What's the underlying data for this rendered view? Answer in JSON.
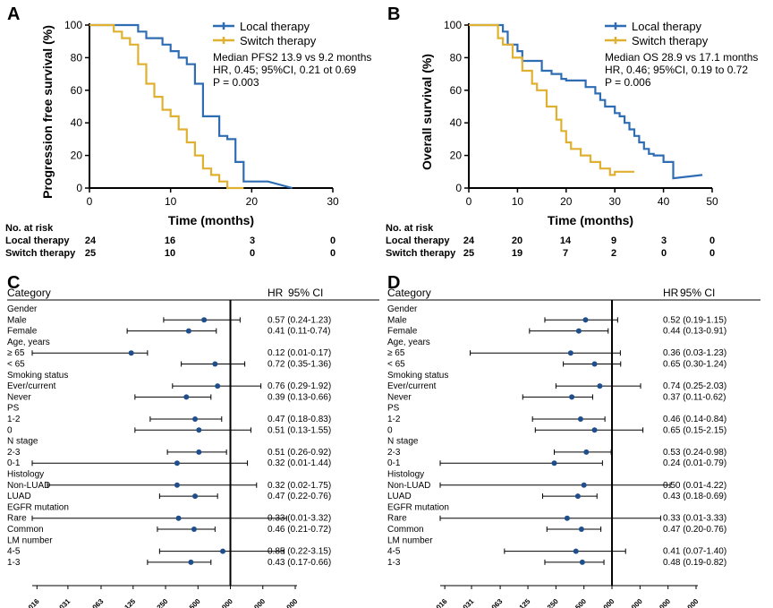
{
  "chart_data": [
    {
      "panel": "A",
      "type": "line",
      "ylabel": "Progression free survival (%)",
      "xlabel": "Time (months)",
      "xlim": [
        0,
        30
      ],
      "ylim": [
        0,
        100
      ],
      "xticks": [
        0,
        10,
        20,
        30
      ],
      "yticks": [
        0,
        20,
        40,
        60,
        80,
        100
      ],
      "series": [
        {
          "name": "Local therapy",
          "color": "#2e6db4",
          "x": [
            0,
            3,
            5,
            6,
            6,
            7,
            7,
            8,
            9,
            9,
            10,
            10,
            11,
            11,
            12,
            12,
            13,
            13,
            14,
            14,
            14,
            16,
            16,
            17,
            17,
            18,
            18,
            19,
            19,
            21,
            21,
            22,
            22,
            25
          ],
          "y": [
            100,
            100,
            100,
            100,
            96,
            96,
            92,
            92,
            92,
            88,
            88,
            84,
            84,
            80,
            80,
            76,
            76,
            64,
            64,
            52,
            44,
            44,
            32,
            32,
            30,
            30,
            16,
            16,
            4,
            4,
            4,
            4,
            4,
            0
          ]
        },
        {
          "name": "Switch therapy",
          "color": "#e0b030",
          "x": [
            0,
            3,
            3,
            4,
            4,
            5,
            5,
            6,
            6,
            7,
            7,
            8,
            8,
            9,
            9,
            10,
            10,
            11,
            11,
            12,
            12,
            13,
            13,
            14,
            14,
            15,
            15,
            16,
            16,
            17,
            17,
            19
          ],
          "y": [
            100,
            100,
            96,
            96,
            92,
            92,
            88,
            88,
            76,
            76,
            64,
            64,
            56,
            56,
            48,
            48,
            44,
            44,
            36,
            36,
            28,
            28,
            20,
            20,
            12,
            12,
            8,
            8,
            4,
            4,
            0,
            0
          ]
        }
      ],
      "annotations": [
        "Median PFS2 13.9 vs 9.2 months",
        "HR, 0.45; 95%CI, 0.21 ot 0.69",
        "P = 0.003"
      ],
      "risk_table": {
        "header": "No. at risk",
        "rows": [
          {
            "label": "Local therapy",
            "values": [
              "24",
              "16",
              "3",
              "0"
            ]
          },
          {
            "label": "Switch therapy",
            "values": [
              "25",
              "10",
              "0",
              "0"
            ]
          }
        ]
      }
    },
    {
      "panel": "B",
      "type": "line",
      "ylabel": "Overall survival (%)",
      "xlabel": "Time (months)",
      "xlim": [
        0,
        50
      ],
      "ylim": [
        0,
        100
      ],
      "xticks": [
        0,
        10,
        20,
        30,
        40,
        50
      ],
      "yticks": [
        0,
        20,
        40,
        60,
        80,
        100
      ],
      "series": [
        {
          "name": "Local therapy",
          "color": "#2e6db4",
          "x": [
            0,
            7,
            7,
            8,
            8,
            10,
            10,
            11,
            11,
            15,
            15,
            17,
            17,
            19,
            19,
            20,
            20,
            24,
            24,
            26,
            26,
            27,
            27,
            28,
            28,
            30,
            30,
            31,
            31,
            32,
            32,
            33,
            33,
            34,
            34,
            35,
            35,
            36,
            36,
            37,
            37,
            38,
            38,
            40,
            40,
            42,
            42,
            48
          ],
          "y": [
            100,
            100,
            96,
            96,
            88,
            88,
            84,
            84,
            78,
            78,
            72,
            72,
            70,
            70,
            67,
            67,
            66,
            66,
            62,
            62,
            58,
            58,
            54,
            54,
            50,
            50,
            46,
            46,
            44,
            44,
            40,
            40,
            36,
            36,
            32,
            32,
            28,
            28,
            24,
            24,
            21,
            21,
            20,
            20,
            16,
            16,
            6,
            8
          ]
        },
        {
          "name": "Switch therapy",
          "color": "#e0b030",
          "x": [
            0,
            6,
            6,
            7,
            7,
            9,
            9,
            11,
            11,
            13,
            13,
            14,
            14,
            16,
            16,
            18,
            18,
            19,
            19,
            20,
            20,
            21,
            21,
            23,
            23,
            25,
            25,
            27,
            27,
            29,
            29,
            30,
            30,
            34
          ],
          "y": [
            100,
            100,
            92,
            92,
            88,
            88,
            80,
            80,
            72,
            72,
            64,
            64,
            60,
            60,
            50,
            50,
            42,
            42,
            35,
            35,
            28,
            28,
            24,
            24,
            20,
            20,
            16,
            16,
            12,
            12,
            8,
            8,
            10,
            10
          ]
        }
      ],
      "annotations": [
        "Median OS 28.9 vs 17.1 months",
        "HR, 0.46; 95%CI, 0.19 to 0.72",
        "P = 0.006"
      ],
      "risk_table": {
        "header": "No. at risk",
        "rows": [
          {
            "label": "Local therapy",
            "values": [
              "24",
              "20",
              "14",
              "9",
              "3",
              "0"
            ]
          },
          {
            "label": "Switch therapy",
            "values": [
              "25",
              "19",
              "7",
              "2",
              "0",
              "0"
            ]
          }
        ]
      }
    },
    {
      "panel": "C",
      "type": "forest",
      "header": {
        "category": "Category",
        "hr": "HR",
        "ci": "95% CI"
      },
      "xscale": "log2",
      "xlim": [
        0.012,
        4.0
      ],
      "xticks": [
        "0.016",
        "0.031",
        "0.063",
        "0.125",
        "0.250",
        "0.500",
        "1.000",
        "2.000",
        "4.000"
      ],
      "rows": [
        {
          "label": "Gender",
          "group": true
        },
        {
          "label": "Male",
          "hr": 0.57,
          "lo": 0.24,
          "hi": 1.23,
          "text": "0.57 (0.24-1.23)"
        },
        {
          "label": "Female",
          "hr": 0.41,
          "lo": 0.11,
          "hi": 0.74,
          "text": "0.41 (0.11-0.74)"
        },
        {
          "label": "Age, years",
          "group": true
        },
        {
          "label": "≥ 65",
          "hr": 0.12,
          "lo": 0.01,
          "hi": 0.17,
          "text": "0.12 (0.01-0.17)"
        },
        {
          "label": "< 65",
          "hr": 0.72,
          "lo": 0.35,
          "hi": 1.36,
          "text": "0.72 (0.35-1.36)"
        },
        {
          "label": "Smoking status",
          "group": true
        },
        {
          "label": "Ever/current",
          "hr": 0.76,
          "lo": 0.29,
          "hi": 1.92,
          "text": "0.76 (0.29-1.92)"
        },
        {
          "label": "Never",
          "hr": 0.39,
          "lo": 0.13,
          "hi": 0.66,
          "text": "0.39 (0.13-0.66)"
        },
        {
          "label": "PS",
          "group": true
        },
        {
          "label": "1-2",
          "hr": 0.47,
          "lo": 0.18,
          "hi": 0.83,
          "text": "0.47 (0.18-0.83)"
        },
        {
          "label": "0",
          "hr": 0.51,
          "lo": 0.13,
          "hi": 1.55,
          "text": "0.51 (0.13-1.55)"
        },
        {
          "label": "N stage",
          "group": true
        },
        {
          "label": "2-3",
          "hr": 0.51,
          "lo": 0.26,
          "hi": 0.92,
          "text": "0.51 (0.26-0.92)"
        },
        {
          "label": "0-1",
          "hr": 0.32,
          "lo": 0.01,
          "hi": 1.44,
          "text": "0.32 (0.01-1.44)"
        },
        {
          "label": "Histology",
          "group": true
        },
        {
          "label": "Non-LUAD",
          "hr": 0.32,
          "lo": 0.02,
          "hi": 1.75,
          "text": "0.32 (0.02-1.75)"
        },
        {
          "label": "LUAD",
          "hr": 0.47,
          "lo": 0.22,
          "hi": 0.76,
          "text": "0.47 (0.22-0.76)"
        },
        {
          "label": "EGFR mutation",
          "group": true
        },
        {
          "label": "Rare",
          "hr": 0.33,
          "lo": 0.01,
          "hi": 3.32,
          "text": "0.33 (0.01-3.32)"
        },
        {
          "label": "Common",
          "hr": 0.46,
          "lo": 0.21,
          "hi": 0.72,
          "text": "0.46 (0.21-0.72)"
        },
        {
          "label": "LM number",
          "group": true
        },
        {
          "label": "4-5",
          "hr": 0.85,
          "lo": 0.22,
          "hi": 3.15,
          "text": "0.85 (0.22-3.15)"
        },
        {
          "label": "1-3",
          "hr": 0.43,
          "lo": 0.17,
          "hi": 0.66,
          "text": "0.43 (0.17-0.66)"
        }
      ]
    },
    {
      "panel": "D",
      "type": "forest",
      "header": {
        "category": "Category",
        "hr": "HR",
        "ci": "95% CI"
      },
      "xscale": "log2",
      "xlim": [
        0.012,
        8.0
      ],
      "xticks": [
        "0.016",
        "0.031",
        "0.063",
        "0.125",
        "0.250",
        "0.500",
        "1.000",
        "2.000",
        "4.000",
        "8.000"
      ],
      "rows": [
        {
          "label": "Gender",
          "group": true
        },
        {
          "label": "Male",
          "hr": 0.52,
          "lo": 0.19,
          "hi": 1.15,
          "text": "0.52 (0.19-1.15)"
        },
        {
          "label": "Female",
          "hr": 0.44,
          "lo": 0.13,
          "hi": 0.91,
          "text": "0.44 (0.13-0.91)"
        },
        {
          "label": "Age, years",
          "group": true
        },
        {
          "label": "≥ 65",
          "hr": 0.36,
          "lo": 0.03,
          "hi": 1.23,
          "text": "0.36 (0.03-1.23)"
        },
        {
          "label": "< 65",
          "hr": 0.65,
          "lo": 0.3,
          "hi": 1.24,
          "text": "0.65 (0.30-1.24)"
        },
        {
          "label": "Smoking status",
          "group": true
        },
        {
          "label": "Ever/current",
          "hr": 0.74,
          "lo": 0.25,
          "hi": 2.03,
          "text": "0.74 (0.25-2.03)"
        },
        {
          "label": "Never",
          "hr": 0.37,
          "lo": 0.11,
          "hi": 0.62,
          "text": "0.37 (0.11-0.62)"
        },
        {
          "label": "PS",
          "group": true
        },
        {
          "label": "1-2",
          "hr": 0.46,
          "lo": 0.14,
          "hi": 0.84,
          "text": "0.46 (0.14-0.84)"
        },
        {
          "label": "0",
          "hr": 0.65,
          "lo": 0.15,
          "hi": 2.15,
          "text": "0.65 (0.15-2.15)"
        },
        {
          "label": "N stage",
          "group": true
        },
        {
          "label": "2-3",
          "hr": 0.53,
          "lo": 0.24,
          "hi": 0.98,
          "text": "0.53 (0.24-0.98)"
        },
        {
          "label": "0-1",
          "hr": 0.24,
          "lo": 0.01,
          "hi": 0.79,
          "text": "0.24 (0.01-0.79)"
        },
        {
          "label": "Histology",
          "group": true
        },
        {
          "label": "Non-LUAD",
          "hr": 0.5,
          "lo": 0.01,
          "hi": 4.22,
          "text": "0.50 (0.01-4.22)"
        },
        {
          "label": "LUAD",
          "hr": 0.43,
          "lo": 0.18,
          "hi": 0.69,
          "text": "0.43 (0.18-0.69)"
        },
        {
          "label": "EGFR mutation",
          "group": true
        },
        {
          "label": "Rare",
          "hr": 0.33,
          "lo": 0.01,
          "hi": 3.33,
          "text": "0.33 (0.01-3.33)"
        },
        {
          "label": "Common",
          "hr": 0.47,
          "lo": 0.2,
          "hi": 0.76,
          "text": "0.47 (0.20-0.76)"
        },
        {
          "label": "LM number",
          "group": true
        },
        {
          "label": "4-5",
          "hr": 0.41,
          "lo": 0.07,
          "hi": 1.4,
          "text": "0.41 (0.07-1.40)"
        },
        {
          "label": "1-3",
          "hr": 0.48,
          "lo": 0.19,
          "hi": 0.82,
          "text": "0.48 (0.19-0.82)"
        }
      ]
    }
  ]
}
